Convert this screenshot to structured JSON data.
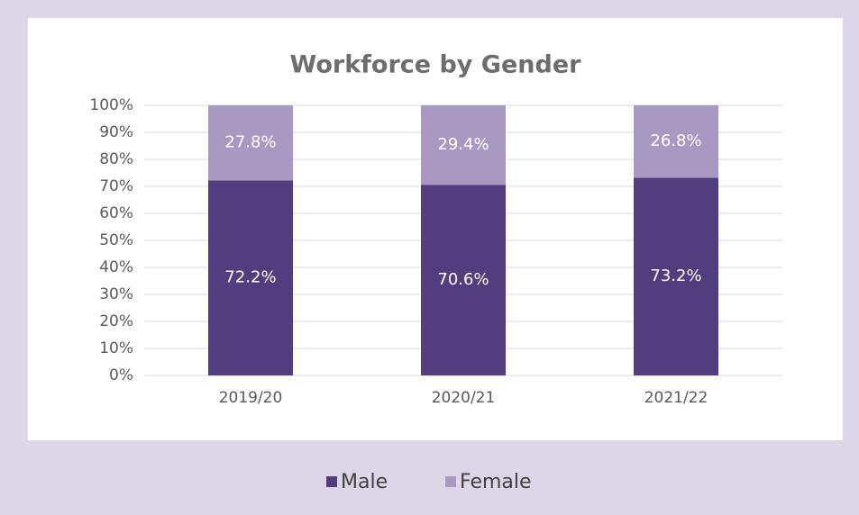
{
  "chart_data": {
    "type": "bar",
    "stacked": true,
    "title": "Workforce by Gender",
    "categories": [
      "2019/20",
      "2020/21",
      "2021/22"
    ],
    "series": [
      {
        "name": "Male",
        "color": "#523e7e",
        "values": [
          72.2,
          70.6,
          73.2
        ],
        "value_labels": [
          "72.2%",
          "70.6%",
          "73.2%"
        ]
      },
      {
        "name": "Female",
        "color": "#a899c2",
        "values": [
          27.8,
          29.4,
          26.8
        ],
        "value_labels": [
          "27.8%",
          "29.4%",
          "26.8%"
        ]
      }
    ],
    "ylim": [
      0,
      100
    ],
    "yticks": [
      {
        "value": 0,
        "label": "0%"
      },
      {
        "value": 10,
        "label": "10%"
      },
      {
        "value": 20,
        "label": "20%"
      },
      {
        "value": 30,
        "label": "30%"
      },
      {
        "value": 40,
        "label": "40%"
      },
      {
        "value": 50,
        "label": "50%"
      },
      {
        "value": 60,
        "label": "60%"
      },
      {
        "value": 70,
        "label": "70%"
      },
      {
        "value": 80,
        "label": "80%"
      },
      {
        "value": 90,
        "label": "90%"
      },
      {
        "value": 100,
        "label": "100%"
      }
    ],
    "grid": true,
    "legend": "bottom"
  }
}
